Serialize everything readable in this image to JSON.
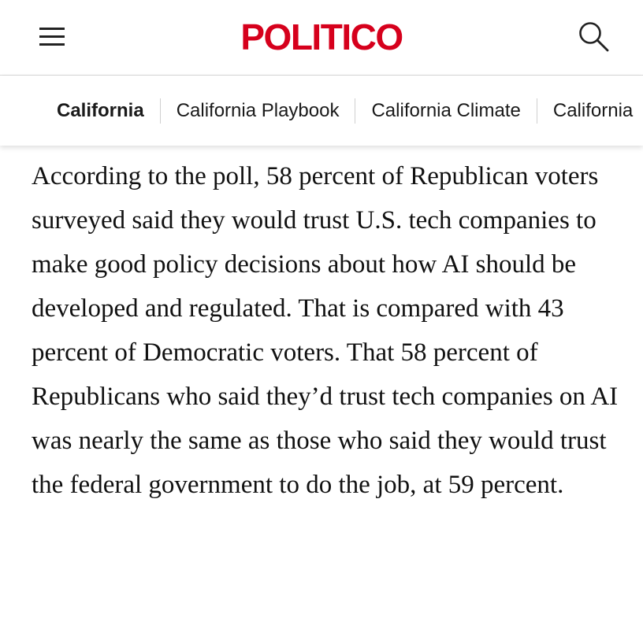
{
  "header": {
    "logo_text": "POLITICO",
    "logo_color": "#d6001c",
    "menu_icon": "hamburger-menu-icon",
    "search_icon": "search-icon"
  },
  "nav": {
    "items": [
      {
        "label": "California"
      },
      {
        "label": "California Playbook"
      },
      {
        "label": "California Climate"
      },
      {
        "label": "California"
      }
    ]
  },
  "article": {
    "paragraph": "According to the poll, 58 percent of Republican voters surveyed said they would trust U.S. tech companies to make good policy decisions about how AI should be developed and regulated. That is compared with 43 percent of Democratic voters. That 58 percent of Republicans who said they’d trust tech companies on AI was nearly the same as those who said they would trust the federal government to do the job, at 59 percent."
  }
}
